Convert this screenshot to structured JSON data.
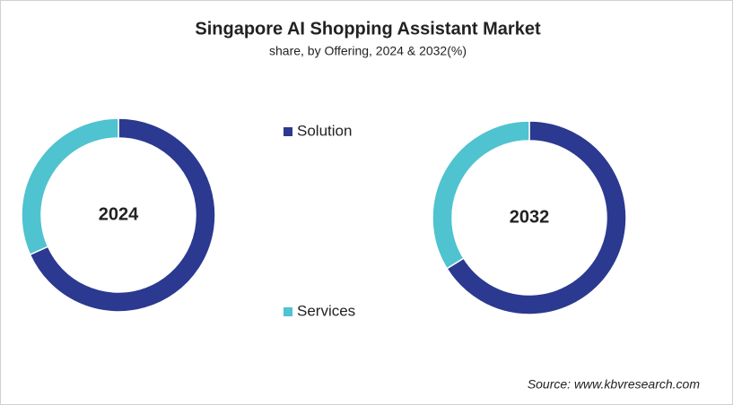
{
  "chart_data": {
    "type": "donut",
    "title": "Singapore AI Shopping Assistant Market",
    "subtitle": "share, by Offering, 2024 & 2032(%)",
    "categories": [
      "Solution",
      "Services"
    ],
    "colors": [
      "#2b3990",
      "#4fc3cf"
    ],
    "series": [
      {
        "name": "2024",
        "values": [
          68.3,
          31.7
        ]
      },
      {
        "name": "2032",
        "values": [
          66.2,
          33.8
        ]
      }
    ],
    "source": "Source: www.kbvresearch.com"
  }
}
